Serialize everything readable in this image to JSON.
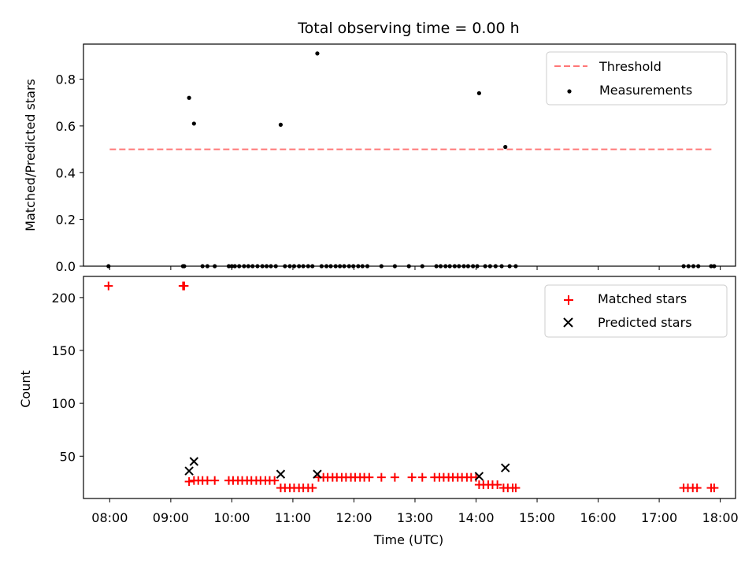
{
  "chart_data": {
    "type": "scatter",
    "title": "Total observing time = 0.00 h",
    "xlabel": "Time (UTC)",
    "x_ticks": [
      "08:00",
      "09:00",
      "10:00",
      "11:00",
      "12:00",
      "13:00",
      "14:00",
      "15:00",
      "16:00",
      "17:00",
      "18:00"
    ],
    "x_range_hours": [
      7.57,
      18.25
    ],
    "panels": [
      {
        "ylabel": "Matched/Predicted stars",
        "ylim": [
          0,
          0.95
        ],
        "y_ticks": [
          "0.0",
          "0.2",
          "0.4",
          "0.6",
          "0.8"
        ],
        "legend": {
          "position": "upper right",
          "entries": [
            "Threshold",
            "Measurements"
          ]
        },
        "series": [
          {
            "name": "Threshold",
            "kind": "dashed-line",
            "color": "#ff7777",
            "x": [
              8.0,
              17.9
            ],
            "y": [
              0.5,
              0.5
            ]
          },
          {
            "name": "Measurements",
            "kind": "scatter",
            "color": "#000000",
            "x": [
              7.98,
              9.2,
              9.22,
              9.3,
              9.38,
              9.52,
              9.6,
              9.72,
              9.95,
              10.0,
              10.05,
              10.12,
              10.2,
              10.27,
              10.34,
              10.42,
              10.5,
              10.57,
              10.64,
              10.72,
              10.8,
              10.87,
              10.95,
              11.02,
              11.1,
              11.17,
              11.25,
              11.32,
              11.4,
              11.47,
              11.55,
              11.62,
              11.7,
              11.77,
              11.84,
              11.92,
              11.99,
              12.07,
              12.14,
              12.22,
              12.45,
              12.67,
              12.9,
              13.12,
              13.35,
              13.42,
              13.5,
              13.57,
              13.65,
              13.72,
              13.8,
              13.87,
              13.95,
              14.02,
              14.05,
              14.15,
              14.23,
              14.32,
              14.42,
              14.48,
              14.55,
              14.65,
              17.4,
              17.48,
              17.56,
              17.64,
              17.85,
              17.9
            ],
            "y": [
              0,
              0,
              0,
              0.72,
              0.61,
              0,
              0,
              0,
              0,
              0,
              0,
              0,
              0,
              0,
              0,
              0,
              0,
              0,
              0,
              0,
              0.605,
              0,
              0,
              0,
              0,
              0,
              0,
              0,
              0.91,
              0,
              0,
              0,
              0,
              0,
              0,
              0,
              0,
              0,
              0,
              0,
              0,
              0,
              0,
              0,
              0,
              0,
              0,
              0,
              0,
              0,
              0,
              0,
              0,
              0,
              0.74,
              0,
              0,
              0,
              0,
              0.51,
              0,
              0,
              0,
              0,
              0,
              0,
              0,
              0
            ]
          }
        ]
      },
      {
        "ylabel": "Count",
        "ylim": [
          10,
          220
        ],
        "y_ticks": [
          "50",
          "100",
          "150",
          "200"
        ],
        "legend": {
          "position": "upper right",
          "entries": [
            "Matched stars",
            "Predicted stars"
          ]
        },
        "series": [
          {
            "name": "Matched stars",
            "kind": "plus",
            "color": "#ff0000",
            "x": [
              7.98,
              9.2,
              9.22,
              9.3,
              9.38,
              9.45,
              9.52,
              9.6,
              9.72,
              9.95,
              10.02,
              10.1,
              10.17,
              10.25,
              10.32,
              10.4,
              10.47,
              10.55,
              10.62,
              10.7,
              10.8,
              10.87,
              10.95,
              11.02,
              11.1,
              11.17,
              11.25,
              11.32,
              11.42,
              11.5,
              11.57,
              11.65,
              11.72,
              11.8,
              11.87,
              11.95,
              12.02,
              12.1,
              12.17,
              12.25,
              12.45,
              12.67,
              12.95,
              13.12,
              13.32,
              13.4,
              13.47,
              13.55,
              13.62,
              13.7,
              13.77,
              13.85,
              13.92,
              14.0,
              14.05,
              14.12,
              14.2,
              14.27,
              14.35,
              14.45,
              14.52,
              14.6,
              14.65,
              17.4,
              17.47,
              17.55,
              17.62,
              17.85,
              17.9
            ],
            "y": [
              211,
              211,
              211,
              26,
              27,
              27,
              27,
              27,
              27,
              27,
              27,
              27,
              27,
              27,
              27,
              27,
              27,
              27,
              27,
              27,
              20,
              20,
              20,
              20,
              20,
              20,
              20,
              20,
              30,
              30,
              30,
              30,
              30,
              30,
              30,
              30,
              30,
              30,
              30,
              30,
              30,
              30,
              30,
              30,
              30,
              30,
              30,
              30,
              30,
              30,
              30,
              30,
              30,
              30,
              23,
              23,
              23,
              23,
              23,
              20,
              20,
              20,
              20,
              20,
              20,
              20,
              20,
              20,
              20
            ]
          },
          {
            "name": "Predicted stars",
            "kind": "x",
            "color": "#000000",
            "x": [
              9.3,
              9.38,
              10.8,
              11.4,
              14.05,
              14.48
            ],
            "y": [
              36,
              45,
              33,
              33,
              31,
              39
            ]
          }
        ]
      }
    ]
  }
}
